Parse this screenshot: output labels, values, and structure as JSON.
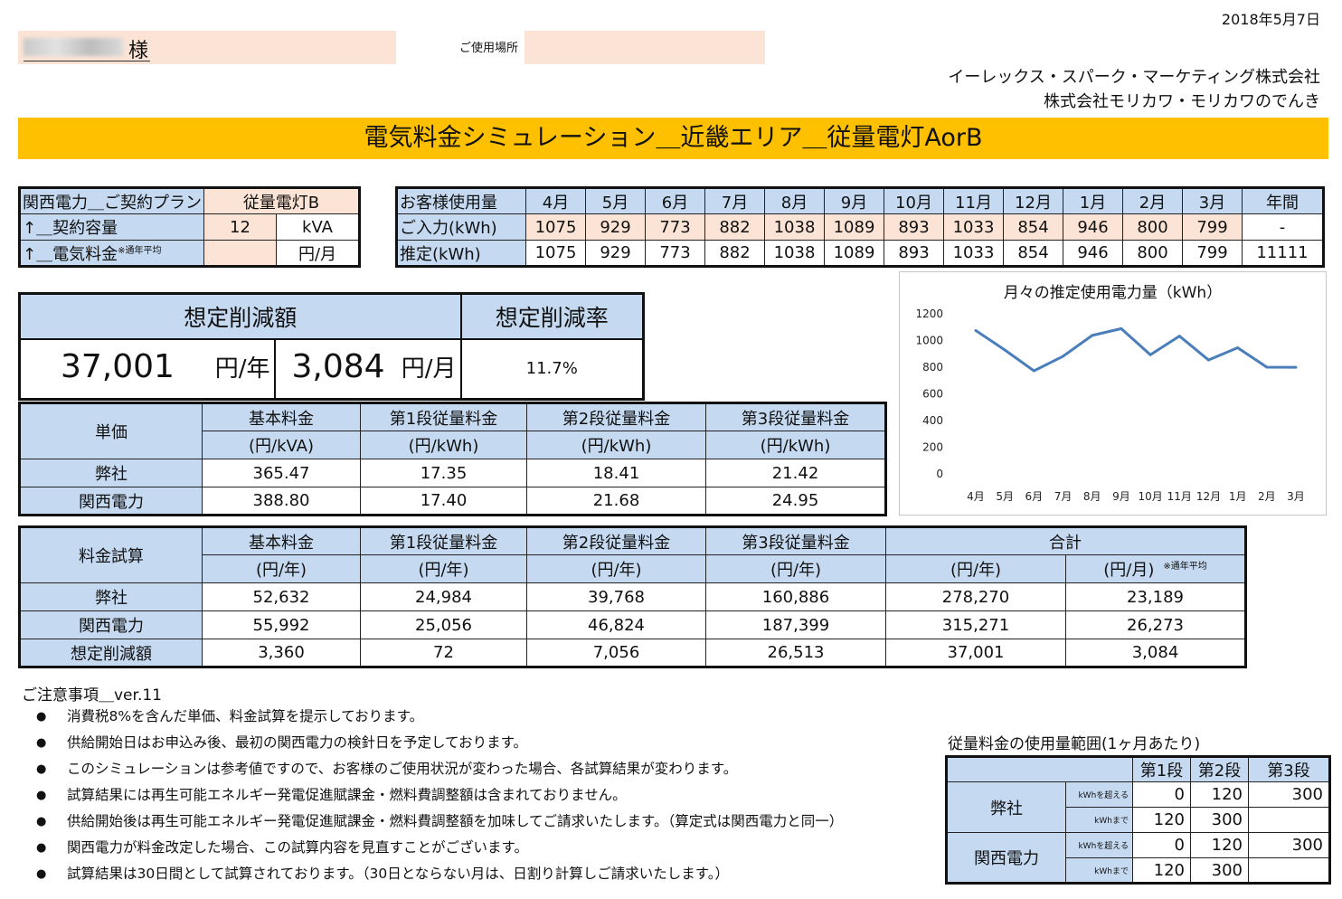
{
  "header": {
    "date": "2018年5月7日",
    "customer_suffix": "様",
    "place_label": "ご使用場所",
    "company1": "イーレックス・スパーク・マーケティング株式会社",
    "company2": "株式会社モリカワ・モリカワのでんき",
    "banner": "電気料金シミュレーション＿近畿エリア＿従量電灯AorB"
  },
  "plan": {
    "row1_label": "関西電力＿ご契約プラン",
    "row1_value": "従量電灯B",
    "row2_label": "↑＿契約容量",
    "row2_value": "12",
    "row2_unit": "kVA",
    "row3_label": "↑＿電気料金",
    "row3_note": "※通年平均",
    "row3_unit": "円/月"
  },
  "usage": {
    "header_label": "お客様使用量",
    "months": [
      "4月",
      "5月",
      "6月",
      "7月",
      "8月",
      "9月",
      "10月",
      "11月",
      "12月",
      "1月",
      "2月",
      "3月"
    ],
    "total_label": "年間",
    "input_label": "ご入力(kWh)",
    "input_values": [
      "1075",
      "929",
      "773",
      "882",
      "1038",
      "1089",
      "893",
      "1033",
      "854",
      "946",
      "800",
      "799"
    ],
    "input_total": "-",
    "estimate_label": "推定(kWh)",
    "estimate_values": [
      "1075",
      "929",
      "773",
      "882",
      "1038",
      "1089",
      "893",
      "1033",
      "854",
      "946",
      "800",
      "799"
    ],
    "estimate_total": "11111"
  },
  "saving": {
    "amount_label": "想定削減額",
    "rate_label": "想定削減率",
    "yearly_value": "37,001",
    "yearly_unit": "円/年",
    "monthly_value": "3,084",
    "monthly_unit": "円/月",
    "rate_value": "11.7%"
  },
  "unit_price": {
    "corner": "単価",
    "headers": [
      "基本料金",
      "第1段従量料金",
      "第2段従量料金",
      "第3段従量料金"
    ],
    "units": [
      "(円/kVA)",
      "(円/kWh)",
      "(円/kWh)",
      "(円/kWh)"
    ],
    "rows": [
      {
        "label": "弊社",
        "values": [
          "365.47",
          "17.35",
          "18.41",
          "21.42"
        ]
      },
      {
        "label": "関西電力",
        "values": [
          "388.80",
          "17.40",
          "21.68",
          "24.95"
        ]
      }
    ]
  },
  "calc": {
    "corner": "料金試算",
    "headers": [
      "基本料金",
      "第1段従量料金",
      "第2段従量料金",
      "第3段従量料金"
    ],
    "units": [
      "(円/年)",
      "(円/年)",
      "(円/年)",
      "(円/年)"
    ],
    "total_label": "合計",
    "total_unit_year": "(円/年)",
    "total_unit_month": "(円/月)",
    "total_note": "※通年平均",
    "rows": [
      {
        "label": "弊社",
        "values": [
          "52,632",
          "24,984",
          "39,768",
          "160,886",
          "278,270",
          "23,189"
        ]
      },
      {
        "label": "関西電力",
        "values": [
          "55,992",
          "25,056",
          "46,824",
          "187,399",
          "315,271",
          "26,273"
        ]
      },
      {
        "label": "想定削減額",
        "values": [
          "3,360",
          "72",
          "7,056",
          "26,513",
          "37,001",
          "3,084"
        ]
      }
    ]
  },
  "chart_data": {
    "type": "line",
    "title": "月々の推定使用電力量（kWh）",
    "categories": [
      "4月",
      "5月",
      "6月",
      "7月",
      "8月",
      "9月",
      "10月",
      "11月",
      "12月",
      "1月",
      "2月",
      "3月"
    ],
    "series": [
      {
        "values": [
          1075,
          929,
          773,
          882,
          1038,
          1089,
          893,
          1033,
          854,
          946,
          800,
          799
        ]
      }
    ],
    "yticks": [
      "0",
      "200",
      "400",
      "600",
      "800",
      "1000",
      "1200"
    ],
    "ylim": [
      0,
      1200
    ],
    "line_color": "#4a7ebb",
    "grid": false
  },
  "notes": {
    "title": "ご注意事項＿ver.11",
    "items": [
      "消費税8%を含んだ単価、料金試算を提示しております。",
      "供給開始日はお申込み後、最初の関西電力の検針日を予定しております。",
      "このシミュレーションは参考値ですので、お客様のご使用状況が変わった場合、各試算結果が変わります。",
      "試算結果には再生可能エネルギー発電促進賦課金・燃料費調整額は含まれておりません。",
      "供給開始後は再生可能エネルギー発電促進賦課金・燃料費調整額を加味してご請求いたします。（算定式は関西電力と同一）",
      "関西電力が料金改定した場合、この試算内容を見直すことがございます。",
      "試算結果は30日間として試算されております。（30日とならない月は、日割り計算しご請求いたします。）"
    ]
  },
  "range": {
    "title": "従量料金の使用量範囲(1ヶ月あたり)",
    "headers": [
      "第1段",
      "第2段",
      "第3段"
    ],
    "over_label": "kWhを超える",
    "upto_label": "kWhまで",
    "companies": [
      {
        "name": "弊社",
        "over": [
          "0",
          "120",
          "300"
        ],
        "upto": [
          "120",
          "300",
          ""
        ]
      },
      {
        "name": "関西電力",
        "over": [
          "0",
          "120",
          "300"
        ],
        "upto": [
          "120",
          "300",
          ""
        ]
      }
    ]
  }
}
